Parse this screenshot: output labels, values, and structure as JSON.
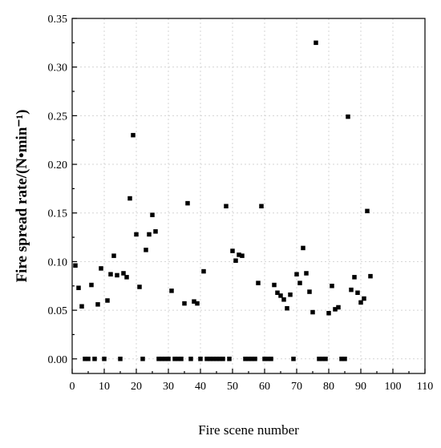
{
  "chart_data": {
    "type": "scatter",
    "title": "",
    "xlabel": "Fire scene number",
    "ylabel": "Fire spread rate/(N•min⁻¹)",
    "xlim": [
      0,
      110
    ],
    "ylim": [
      -0.015,
      0.35
    ],
    "xticks": [
      0,
      10,
      20,
      30,
      40,
      50,
      60,
      70,
      80,
      90,
      100,
      110
    ],
    "yticks": [
      0.0,
      0.05,
      0.1,
      0.15,
      0.2,
      0.25,
      0.3,
      0.35
    ],
    "xtick_labels": [
      "0",
      "10",
      "20",
      "30",
      "40",
      "50",
      "60",
      "70",
      "80",
      "90",
      "100",
      "110"
    ],
    "ytick_labels": [
      "0.00",
      "0.05",
      "0.10",
      "0.15",
      "0.20",
      "0.25",
      "0.30",
      "0.35"
    ],
    "grid": true,
    "marker": "square",
    "color": "#000000",
    "points": [
      [
        1,
        0.096
      ],
      [
        2,
        0.073
      ],
      [
        3,
        0.054
      ],
      [
        4,
        0.0
      ],
      [
        5,
        0.0
      ],
      [
        6,
        0.076
      ],
      [
        7,
        0.0
      ],
      [
        8,
        0.056
      ],
      [
        9,
        0.093
      ],
      [
        10,
        0.0
      ],
      [
        11,
        0.06
      ],
      [
        12,
        0.087
      ],
      [
        13,
        0.106
      ],
      [
        14,
        0.086
      ],
      [
        15,
        0.0
      ],
      [
        16,
        0.088
      ],
      [
        17,
        0.084
      ],
      [
        18,
        0.165
      ],
      [
        19,
        0.23
      ],
      [
        20,
        0.128
      ],
      [
        21,
        0.074
      ],
      [
        22,
        0.0
      ],
      [
        23,
        0.112
      ],
      [
        24,
        0.128
      ],
      [
        25,
        0.148
      ],
      [
        26,
        0.131
      ],
      [
        27,
        0.0
      ],
      [
        28,
        0.0
      ],
      [
        29,
        0.0
      ],
      [
        30,
        0.0
      ],
      [
        31,
        0.07
      ],
      [
        32,
        0.0
      ],
      [
        33,
        0.0
      ],
      [
        34,
        0.0
      ],
      [
        35,
        0.057
      ],
      [
        36,
        0.16
      ],
      [
        37,
        0.0
      ],
      [
        38,
        0.059
      ],
      [
        39,
        0.057
      ],
      [
        40,
        0.0
      ],
      [
        41,
        0.09
      ],
      [
        42,
        0.0
      ],
      [
        43,
        0.0
      ],
      [
        44,
        0.0
      ],
      [
        45,
        0.0
      ],
      [
        46,
        0.0
      ],
      [
        47,
        0.0
      ],
      [
        48,
        0.157
      ],
      [
        49,
        0.0
      ],
      [
        50,
        0.111
      ],
      [
        51,
        0.101
      ],
      [
        52,
        0.107
      ],
      [
        53,
        0.106
      ],
      [
        54,
        0.0
      ],
      [
        55,
        0.0
      ],
      [
        56,
        0.0
      ],
      [
        57,
        0.0
      ],
      [
        58,
        0.078
      ],
      [
        59,
        0.157
      ],
      [
        60,
        0.0
      ],
      [
        61,
        0.0
      ],
      [
        62,
        0.0
      ],
      [
        63,
        0.076
      ],
      [
        64,
        0.068
      ],
      [
        65,
        0.065
      ],
      [
        66,
        0.061
      ],
      [
        67,
        0.052
      ],
      [
        68,
        0.066
      ],
      [
        69,
        0.0
      ],
      [
        70,
        0.087
      ],
      [
        71,
        0.078
      ],
      [
        72,
        0.114
      ],
      [
        73,
        0.088
      ],
      [
        74,
        0.069
      ],
      [
        75,
        0.048
      ],
      [
        76,
        0.325
      ],
      [
        77,
        0.0
      ],
      [
        78,
        0.0
      ],
      [
        79,
        0.0
      ],
      [
        80,
        0.047
      ],
      [
        81,
        0.075
      ],
      [
        82,
        0.051
      ],
      [
        83,
        0.053
      ],
      [
        84,
        0.0
      ],
      [
        85,
        0.0
      ],
      [
        86,
        0.249
      ],
      [
        87,
        0.071
      ],
      [
        88,
        0.084
      ],
      [
        89,
        0.068
      ],
      [
        90,
        0.058
      ],
      [
        91,
        0.062
      ],
      [
        92,
        0.152
      ],
      [
        93,
        0.085
      ]
    ]
  }
}
